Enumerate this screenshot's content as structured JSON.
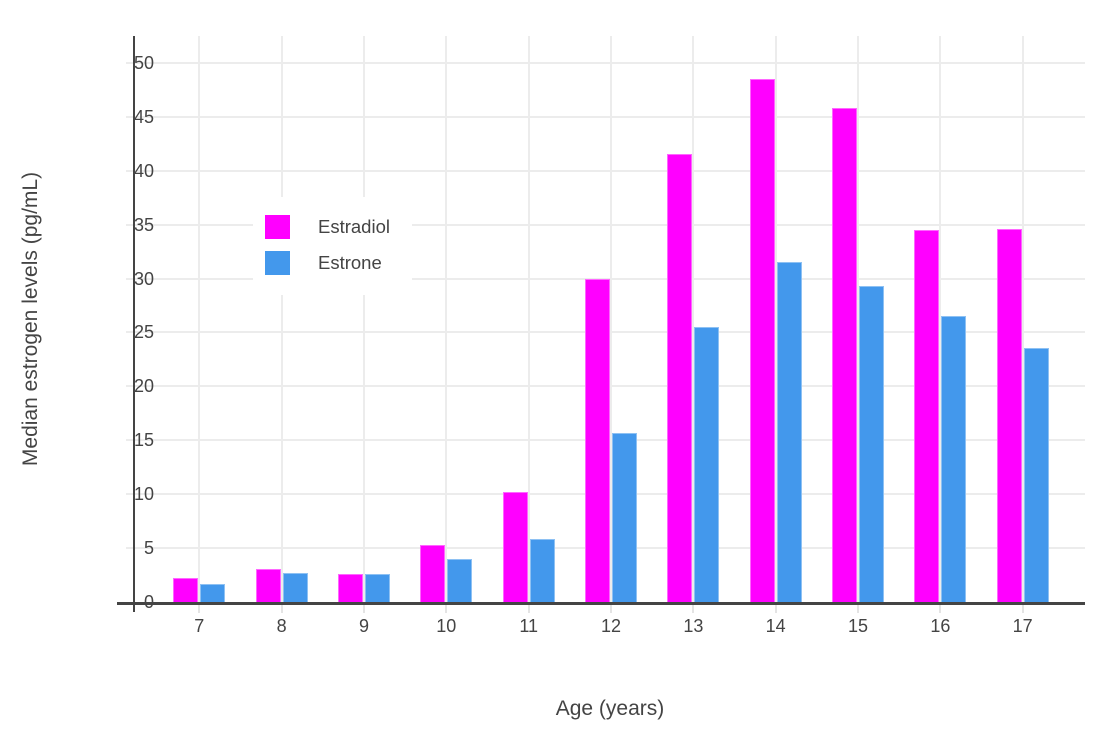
{
  "chart_data": {
    "type": "bar",
    "categories": [
      "7",
      "8",
      "9",
      "10",
      "11",
      "12",
      "13",
      "14",
      "15",
      "16",
      "17"
    ],
    "series": [
      {
        "name": "Estradiol",
        "color": "#ff00ff",
        "values": [
          2.2,
          3.1,
          2.6,
          5.3,
          10.2,
          30.0,
          41.6,
          48.5,
          45.8,
          34.5,
          34.6
        ]
      },
      {
        "name": "Estrone",
        "color": "#4398ec",
        "values": [
          1.7,
          2.7,
          2.6,
          4.0,
          5.8,
          15.7,
          25.5,
          31.5,
          29.3,
          26.5,
          23.6
        ]
      }
    ],
    "title": "",
    "xlabel": "Age (years)",
    "ylabel": "Median estrogen levels (pg/mL)",
    "ylim": [
      0,
      52.5
    ],
    "yticks": [
      0,
      5,
      10,
      15,
      20,
      25,
      30,
      35,
      40,
      45,
      50
    ],
    "grid": true,
    "legend_position": "inside-top-left",
    "colors": {
      "grid": "#ececec",
      "axis": "#444444",
      "text": "#444444",
      "background": "#ffffff"
    }
  }
}
